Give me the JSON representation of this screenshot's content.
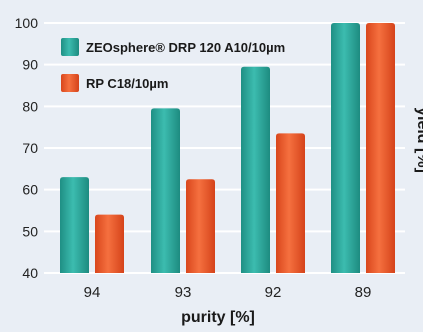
{
  "chart_data": {
    "type": "bar",
    "title": "",
    "xlabel": "purity [%]",
    "ylabel": "yield [%]",
    "categories": [
      "94",
      "93",
      "92",
      "89"
    ],
    "ylim": [
      40,
      100
    ],
    "yticks": [
      40,
      50,
      60,
      70,
      80,
      90,
      100
    ],
    "grid": true,
    "legend_position": "top-left",
    "series": [
      {
        "name": "ZEOsphere® DRP 120 A10/10µm",
        "color": "#2fa89c",
        "values": [
          63,
          79.5,
          89.5,
          100
        ]
      },
      {
        "name": "RP C18/10µm",
        "color": "#ef5a2a",
        "values": [
          54,
          62.5,
          73.5,
          100
        ]
      }
    ]
  }
}
